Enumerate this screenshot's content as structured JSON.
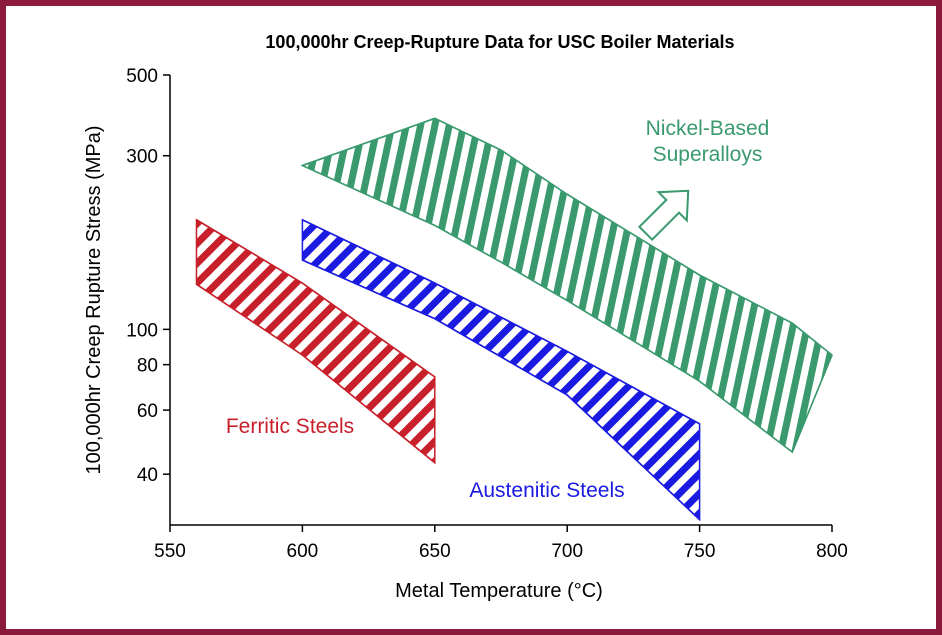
{
  "chart_data": {
    "type": "band",
    "title": "100,000hr Creep-Rupture Data for USC Boiler Materials",
    "x_label": "Metal Temperature (°C)",
    "y_label": "100,000hr Creep Rupture Stress (MPa)",
    "xlim": [
      550,
      800
    ],
    "xticks": [
      550,
      600,
      650,
      700,
      750,
      800
    ],
    "ylim": [
      29,
      500
    ],
    "yticks": [
      40,
      60,
      80,
      100,
      300,
      500
    ],
    "y_scale": "log",
    "grid": false,
    "series": [
      {
        "name": "Ferritic Steels",
        "color": "#c8202a",
        "x": [
          560,
          600,
          650
        ],
        "upper": [
          200,
          134,
          74
        ],
        "lower": [
          133,
          85,
          43
        ]
      },
      {
        "name": "Austenitic Steels",
        "color": "#1a1ae0",
        "x": [
          600,
          650,
          700,
          750
        ],
        "upper": [
          200,
          134,
          87,
          55
        ],
        "lower": [
          155,
          107,
          66,
          30
        ]
      },
      {
        "name": "Nickel-Based Superalloys",
        "color": "#3a9a6e",
        "x": [
          600,
          650,
          675,
          700,
          750,
          785,
          800
        ],
        "upper": [
          282,
          380,
          311,
          235,
          141,
          104,
          85
        ],
        "lower": [
          282,
          193,
          153,
          120,
          72,
          46,
          85
        ]
      }
    ]
  }
}
